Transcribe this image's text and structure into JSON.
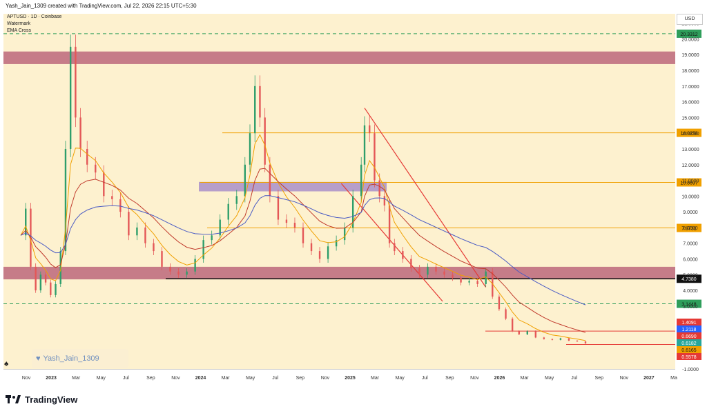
{
  "header": {
    "caption": "Yash_Jain_1309 created with TradingView.com, Jul 22, 2026 22:15 UTC+5:30"
  },
  "legend": {
    "symbol": "APTUSD · 1D · Coinbase",
    "line2": "Watermark",
    "line3": "EMA Cross"
  },
  "currency_button": "USD",
  "watermark": {
    "text": "Yash_Jain_1309"
  },
  "brand": {
    "name": "TradingView"
  },
  "colors": {
    "background": "#fdf1cf",
    "zone": "#c06f7f",
    "purple_zone": "#a98fc9",
    "orange_line": "#f0a000",
    "dashed_green": "#2f9e5b",
    "red_line": "#e53935",
    "candle_up": "#2e9e6b",
    "candle_down": "#e45757"
  },
  "chart_data": {
    "type": "line",
    "title": "APTUSD · 1D · Coinbase",
    "y_ticks": [
      "21.0000",
      "20.0000",
      "19.0000",
      "18.0000",
      "17.0000",
      "16.0000",
      "15.0000",
      "14.0000",
      "13.0000",
      "12.0000",
      "11.0000",
      "10.0000",
      "9.0000",
      "8.0000",
      "7.0000",
      "6.0000",
      "5.0000",
      "4.0000",
      "3.0000",
      "2.0000",
      "1.0000",
      "0.0000",
      "-1.0000"
    ],
    "x_ticks": [
      "Nov",
      "2023",
      "Mar",
      "May",
      "Jul",
      "Sep",
      "Nov",
      "2024",
      "Mar",
      "May",
      "Jul",
      "Sep",
      "Nov",
      "2025",
      "Mar",
      "May",
      "Jul",
      "Sep",
      "Nov",
      "2026",
      "Mar",
      "May",
      "Jul",
      "Sep",
      "Nov",
      "2027",
      "Ma"
    ],
    "ylim": [
      -1,
      21.6
    ],
    "series": [
      {
        "points": [
          [
            0,
            7.5
          ],
          [
            3,
            9.2
          ],
          [
            6,
            5.5
          ],
          [
            9,
            4.0
          ],
          [
            12,
            5.0
          ],
          [
            15,
            4.5
          ],
          [
            18,
            3.7
          ],
          [
            21,
            4.4
          ],
          [
            24,
            6.5
          ],
          [
            27,
            13
          ],
          [
            30,
            19.5
          ],
          [
            33,
            15
          ],
          [
            36,
            13
          ],
          [
            40,
            12
          ],
          [
            45,
            11.5
          ],
          [
            50,
            10
          ],
          [
            55,
            9.8
          ],
          [
            60,
            9
          ],
          [
            65,
            7.5
          ],
          [
            70,
            8
          ],
          [
            75,
            7
          ],
          [
            80,
            6.5
          ],
          [
            85,
            5.5
          ],
          [
            90,
            5.2
          ],
          [
            95,
            5.0
          ],
          [
            100,
            5.2
          ],
          [
            105,
            6.0
          ],
          [
            110,
            7.2
          ],
          [
            115,
            7.5
          ],
          [
            120,
            8.5
          ],
          [
            125,
            9.5
          ],
          [
            130,
            10
          ],
          [
            135,
            12
          ],
          [
            138,
            14
          ],
          [
            141,
            17
          ],
          [
            144,
            15
          ],
          [
            147,
            12
          ],
          [
            150,
            10
          ],
          [
            155,
            8.5
          ],
          [
            160,
            8.3
          ],
          [
            165,
            8
          ],
          [
            170,
            7
          ],
          [
            175,
            6.5
          ],
          [
            180,
            6
          ],
          [
            185,
            6.8
          ],
          [
            190,
            7.2
          ],
          [
            195,
            8
          ],
          [
            200,
            10
          ],
          [
            205,
            12
          ],
          [
            207,
            14.5
          ],
          [
            210,
            14
          ],
          [
            213,
            11
          ],
          [
            216,
            10
          ],
          [
            219,
            9.4
          ],
          [
            222,
            7
          ],
          [
            225,
            6.5
          ],
          [
            230,
            6
          ],
          [
            235,
            5.4
          ],
          [
            240,
            5
          ],
          [
            245,
            5.5
          ],
          [
            250,
            5.2
          ],
          [
            255,
            5.0
          ],
          [
            260,
            4.8
          ],
          [
            265,
            4.5
          ],
          [
            270,
            4.6
          ],
          [
            275,
            4.4
          ],
          [
            280,
            5.2
          ],
          [
            284,
            3.6
          ],
          [
            288,
            2.8
          ],
          [
            292,
            2.2
          ],
          [
            296,
            1.4
          ],
          [
            300,
            1.2
          ],
          [
            305,
            1.4
          ],
          [
            310,
            1.0
          ],
          [
            315,
            0.9
          ],
          [
            320,
            0.85
          ],
          [
            325,
            0.95
          ],
          [
            330,
            0.8
          ],
          [
            335,
            0.75
          ],
          [
            340,
            0.62
          ]
        ]
      }
    ],
    "levels": [
      {
        "label": "20.3312",
        "style": "dashed-green",
        "value": 20.3312
      },
      {
        "label": "14.0258",
        "style": "orange",
        "value": 14.0258
      },
      {
        "label": "10.8697",
        "style": "orange",
        "value": 10.8697
      },
      {
        "label": "7.9731",
        "style": "orange",
        "value": 7.9731
      },
      {
        "label": "4.7380",
        "style": "black",
        "value": 4.738
      },
      {
        "label": "3.1448",
        "style": "dashed-green",
        "value": 3.1448
      }
    ],
    "zones": [
      {
        "kind": "resistance",
        "low": 18.4,
        "high": 19.2
      },
      {
        "kind": "purple",
        "low": 10.3,
        "high": 10.9
      },
      {
        "kind": "support",
        "low": 4.7,
        "high": 5.5
      }
    ],
    "price_tags": [
      {
        "label": "1.4091",
        "color": "#e53935",
        "value": 1.4091
      },
      {
        "label": "1.2118",
        "color": "#2962ff",
        "value": 1.2118
      },
      {
        "label": "0.6690",
        "color": "#e53935",
        "value": 0.669
      },
      {
        "label": "0.6182",
        "color": "#26a69a",
        "value": 0.6182
      },
      {
        "label": "0.6165",
        "color": "#f0a000",
        "value": 0.6165
      },
      {
        "label": "0.5578",
        "color": "#e53935",
        "value": 0.5578
      }
    ]
  }
}
